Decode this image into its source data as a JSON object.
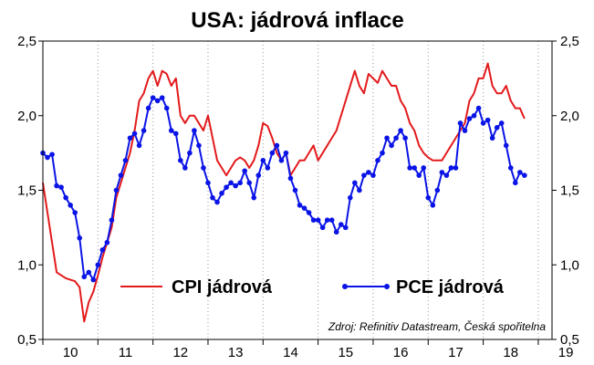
{
  "chart_data": {
    "type": "line",
    "title": "USA: jádrová inflace",
    "source": "Zdroj: Refinitiv Datastream, Česká spořitelna",
    "ylim": [
      0.5,
      2.5
    ],
    "y_ticks": [
      "0,5",
      "1,0",
      "1,5",
      "2,0",
      "2,5"
    ],
    "x_tick_labels": [
      "10",
      "11",
      "12",
      "13",
      "14",
      "15",
      "16",
      "17",
      "18",
      "19"
    ],
    "x_range": [
      0,
      111
    ],
    "grid": "vertical dotted lines at year boundaries",
    "legend": "middle, inside plot area",
    "series": [
      {
        "name": "CPI jádrová",
        "color": "#e31a1c",
        "marker": "none",
        "values": [
          1.55,
          1.35,
          1.15,
          0.95,
          0.93,
          0.91,
          0.9,
          0.89,
          0.85,
          0.62,
          0.75,
          0.82,
          0.93,
          1.05,
          1.15,
          1.25,
          1.45,
          1.55,
          1.65,
          1.75,
          1.9,
          2.1,
          2.15,
          2.25,
          2.3,
          2.2,
          2.3,
          2.28,
          2.2,
          2.25,
          2.0,
          1.95,
          2.0,
          2.0,
          1.95,
          1.9,
          2.0,
          1.85,
          1.7,
          1.65,
          1.6,
          1.65,
          1.7,
          1.72,
          1.7,
          1.65,
          1.7,
          1.8,
          1.95,
          1.93,
          1.85,
          1.75,
          1.7,
          1.75,
          1.6,
          1.65,
          1.7,
          1.7,
          1.75,
          1.8,
          1.7,
          1.75,
          1.8,
          1.85,
          1.9,
          2.0,
          2.1,
          2.2,
          2.3,
          2.2,
          2.15,
          2.28,
          2.25,
          2.22,
          2.3,
          2.25,
          2.2,
          2.2,
          2.1,
          2.05,
          1.95,
          1.9,
          1.8,
          1.75,
          1.72,
          1.7,
          1.7,
          1.7,
          1.75,
          1.8,
          1.85,
          1.9,
          1.95,
          2.1,
          2.15,
          2.25,
          2.25,
          2.35,
          2.2,
          2.15,
          2.15,
          2.2,
          2.1,
          2.05,
          2.05,
          1.98
        ]
      },
      {
        "name": "PCE jádrová",
        "color": "#0a14e6",
        "marker": "circle",
        "values": [
          1.75,
          1.72,
          1.74,
          1.53,
          1.52,
          1.45,
          1.4,
          1.35,
          1.18,
          0.92,
          0.95,
          0.9,
          1.0,
          1.1,
          1.15,
          1.3,
          1.5,
          1.6,
          1.7,
          1.85,
          1.88,
          1.8,
          1.9,
          2.05,
          2.12,
          2.1,
          2.12,
          2.05,
          1.9,
          1.88,
          1.7,
          1.65,
          1.75,
          1.9,
          1.8,
          1.65,
          1.55,
          1.45,
          1.42,
          1.48,
          1.52,
          1.55,
          1.53,
          1.55,
          1.63,
          1.55,
          1.45,
          1.6,
          1.7,
          1.65,
          1.75,
          1.8,
          1.7,
          1.75,
          1.58,
          1.5,
          1.4,
          1.38,
          1.35,
          1.3,
          1.3,
          1.25,
          1.3,
          1.3,
          1.22,
          1.27,
          1.25,
          1.45,
          1.55,
          1.5,
          1.6,
          1.62,
          1.6,
          1.7,
          1.75,
          1.85,
          1.8,
          1.85,
          1.9,
          1.85,
          1.65,
          1.65,
          1.6,
          1.65,
          1.45,
          1.4,
          1.5,
          1.62,
          1.6,
          1.65,
          1.65,
          1.95,
          1.9,
          1.98,
          2.0,
          2.05,
          1.95,
          1.97,
          1.85,
          1.92,
          1.95,
          1.8,
          1.65,
          1.55,
          1.62,
          1.6
        ]
      }
    ]
  }
}
